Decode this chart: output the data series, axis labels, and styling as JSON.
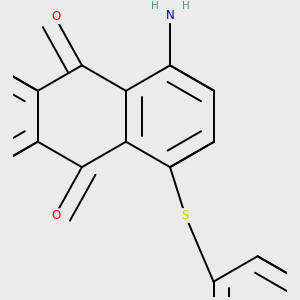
{
  "bg_color": "#ebebeb",
  "bond_color": "#000000",
  "bond_width": 1.4,
  "dbo": 0.055,
  "atom_colors": {
    "O": "#ff0000",
    "N": "#0000cd",
    "S": "#cccc00",
    "H": "#4a9a8a",
    "C": "#000000"
  },
  "font_size": 8.5,
  "fig_size": [
    3.0,
    3.0
  ],
  "dpi": 100
}
